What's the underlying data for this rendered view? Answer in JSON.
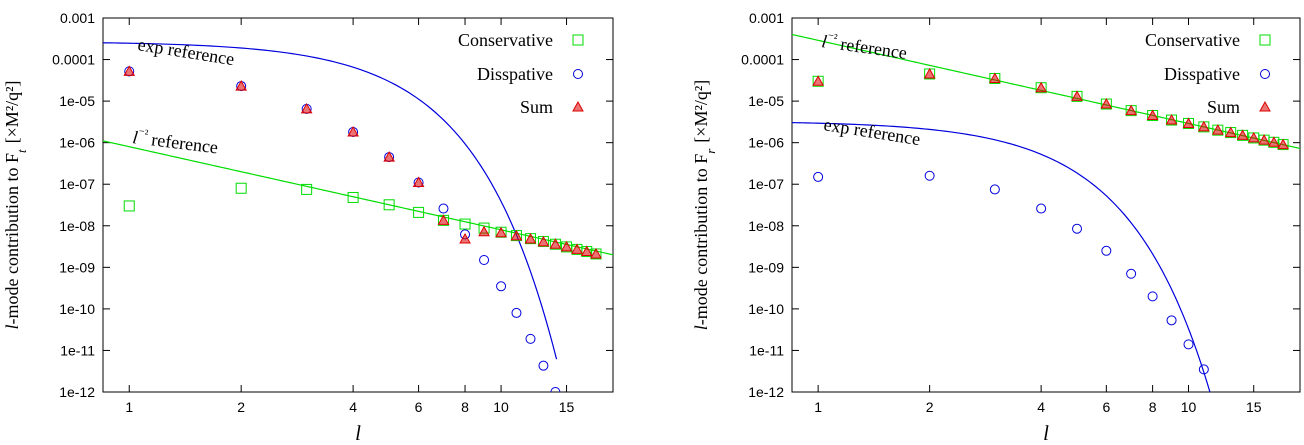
{
  "chart_data": [
    {
      "type": "scatter",
      "xscale": "log",
      "yscale": "log",
      "xlabel": "l",
      "ylabel_prefix": "l",
      "ylabel_text": "-mode contribution to F",
      "ylabel_sub": "t",
      "ylabel_units": "[×M²/q²]",
      "xlim": [
        0.85,
        20
      ],
      "ylim": [
        1e-12,
        0.001
      ],
      "xticks": [
        1,
        2,
        4,
        6,
        8,
        10,
        15
      ],
      "xtick_labels": [
        "1",
        "2",
        "4",
        "6",
        "8",
        "10",
        "15"
      ],
      "yticks": [
        1e-12,
        1e-11,
        1e-10,
        1e-09,
        1e-08,
        1e-07,
        1e-06,
        1e-05,
        0.0001,
        0.001
      ],
      "ytick_labels": [
        "1e-12",
        "1e-11",
        "1e-10",
        "1e-09",
        "1e-08",
        "1e-07",
        "1e-06",
        "1e-05",
        "0.0001",
        "0.001"
      ],
      "legend_position": "top-right",
      "series": [
        {
          "name": "Conservative",
          "marker": "square",
          "color": "#00dd00",
          "x": [
            1,
            2,
            3,
            4,
            5,
            6,
            7,
            8,
            9,
            10,
            11,
            12,
            13,
            14,
            15,
            16,
            17,
            18
          ],
          "y": [
            3e-08,
            8e-08,
            7.5e-08,
            4.8e-08,
            3.2e-08,
            2.1e-08,
            1.35e-08,
            1.1e-08,
            8.8e-09,
            7e-09,
            5.8e-09,
            4.9e-09,
            4.2e-09,
            3.6e-09,
            3.1e-09,
            2.7e-09,
            2.4e-09,
            2.1e-09
          ]
        },
        {
          "name": "Disspative",
          "marker": "circle",
          "color": "#0000dd",
          "x": [
            1,
            2,
            3,
            4,
            5,
            6,
            7,
            8,
            9,
            10,
            11,
            12,
            13,
            14
          ],
          "y": [
            5.2e-05,
            2.3e-05,
            6.5e-06,
            1.8e-06,
            4.5e-07,
            1.1e-07,
            2.6e-08,
            6.2e-09,
            1.5e-09,
            3.5e-10,
            8e-11,
            1.9e-11,
            4.3e-12,
            1e-12
          ]
        },
        {
          "name": "Sum",
          "marker": "triangle",
          "color": "#dd0000",
          "x": [
            1,
            2,
            3,
            4,
            5,
            6,
            7,
            8,
            9,
            10,
            11,
            12,
            13,
            14,
            15,
            16,
            17,
            18
          ],
          "y": [
            5.2e-05,
            2.3e-05,
            6.5e-06,
            1.8e-06,
            4.5e-07,
            1.1e-07,
            1.35e-08,
            4.8e-09,
            7.2e-09,
            6.8e-09,
            5.7e-09,
            4.8e-09,
            4.1e-09,
            3.6e-09,
            3.1e-09,
            2.7e-09,
            2.4e-09,
            2.1e-09
          ]
        }
      ],
      "reference_curves": [
        {
          "name": "exp reference",
          "color": "#0000dd",
          "kind": "gaussian",
          "a": 0.00027,
          "c": 0.0885,
          "x": [
            0.85,
            14.1
          ]
        },
        {
          "name": "l⁻² reference",
          "color": "#00dd00",
          "kind": "power",
          "a": 8e-07,
          "p": -2.0,
          "x": [
            0.85,
            20
          ]
        }
      ],
      "annotations": [
        "exp reference",
        "l⁻² reference"
      ]
    },
    {
      "type": "scatter",
      "xscale": "log",
      "yscale": "log",
      "xlabel": "l",
      "ylabel_prefix": "l",
      "ylabel_text": "-mode contribution to F",
      "ylabel_sub": "r",
      "ylabel_units": "[×M²/q²]",
      "xlim": [
        0.85,
        20
      ],
      "ylim": [
        1e-12,
        0.001
      ],
      "xticks": [
        1,
        2,
        4,
        6,
        8,
        10,
        15
      ],
      "xtick_labels": [
        "1",
        "2",
        "4",
        "6",
        "8",
        "10",
        "15"
      ],
      "yticks": [
        1e-12,
        1e-11,
        1e-10,
        1e-09,
        1e-08,
        1e-07,
        1e-06,
        1e-05,
        0.0001,
        0.001
      ],
      "ytick_labels": [
        "1e-12",
        "1e-11",
        "1e-10",
        "1e-09",
        "1e-08",
        "1e-07",
        "1e-06",
        "1e-05",
        "0.0001",
        "0.001"
      ],
      "legend_position": "top-right",
      "series": [
        {
          "name": "Conservative",
          "marker": "square",
          "color": "#00dd00",
          "x": [
            1,
            2,
            3,
            4,
            5,
            6,
            7,
            8,
            9,
            10,
            11,
            12,
            13,
            14,
            15,
            16,
            17,
            18
          ],
          "y": [
            3e-05,
            4.5e-05,
            3.5e-05,
            2.1e-05,
            1.3e-05,
            8.5e-06,
            5.9e-06,
            4.5e-06,
            3.5e-06,
            2.9e-06,
            2.4e-06,
            2e-06,
            1.75e-06,
            1.5e-06,
            1.3e-06,
            1.15e-06,
            1.02e-06,
            9e-07
          ]
        },
        {
          "name": "Disspative",
          "marker": "circle",
          "color": "#0000dd",
          "x": [
            1,
            2,
            3,
            4,
            5,
            6,
            7,
            8,
            9,
            10,
            11
          ],
          "y": [
            1.5e-07,
            1.6e-07,
            7.5e-08,
            2.6e-08,
            8.5e-09,
            2.5e-09,
            7e-10,
            2e-10,
            5.3e-11,
            1.4e-11,
            3.5e-12
          ]
        },
        {
          "name": "Sum",
          "marker": "triangle",
          "color": "#dd0000",
          "x": [
            1,
            2,
            3,
            4,
            5,
            6,
            7,
            8,
            9,
            10,
            11,
            12,
            13,
            14,
            15,
            16,
            17,
            18
          ],
          "y": [
            3e-05,
            4.5e-05,
            3.5e-05,
            2.1e-05,
            1.3e-05,
            8.5e-06,
            5.9e-06,
            4.5e-06,
            3.5e-06,
            2.9e-06,
            2.4e-06,
            2e-06,
            1.75e-06,
            1.5e-06,
            1.3e-06,
            1.15e-06,
            1.02e-06,
            9e-07
          ]
        }
      ],
      "reference_curves": [
        {
          "name": "exp reference",
          "color": "#0000dd",
          "kind": "gaussian",
          "a": 3.3e-06,
          "c": 0.115,
          "x": [
            0.85,
            11.5
          ]
        },
        {
          "name": "l⁻² reference",
          "color": "#00dd00",
          "kind": "power",
          "a": 0.00029,
          "p": -2.0,
          "x": [
            0.85,
            20
          ]
        }
      ],
      "annotations": [
        "l⁻² reference",
        "exp reference"
      ]
    }
  ]
}
